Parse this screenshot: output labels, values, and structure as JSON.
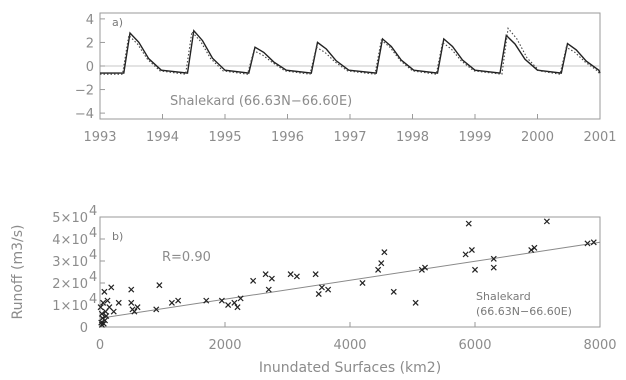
{
  "chart_data": [
    {
      "type": "line",
      "panel_label": "a)",
      "annotation": "Shalekard (66.63N−66.60E)",
      "xlim": [
        1993,
        2001
      ],
      "ylim": [
        -4.5,
        4.5
      ],
      "xticks": [
        "1993",
        "1994",
        "1995",
        "1996",
        "1997",
        "1998",
        "1999",
        "2000",
        "2001"
      ],
      "yticks": [
        "4",
        "2",
        "0",
        "−2",
        "−4"
      ],
      "series": [
        {
          "style": "solid",
          "peaks": [
            {
              "x": 1993.48,
              "y": 2.8
            },
            {
              "x": 1994.5,
              "y": 3.0
            },
            {
              "x": 1995.48,
              "y": 1.6
            },
            {
              "x": 1996.48,
              "y": 2.0
            },
            {
              "x": 1997.52,
              "y": 2.3
            },
            {
              "x": 1998.5,
              "y": 2.3
            },
            {
              "x": 1999.5,
              "y": 2.6
            },
            {
              "x": 2000.48,
              "y": 1.9
            }
          ],
          "baseline": -0.6
        },
        {
          "style": "dotted",
          "peaks": [
            {
              "x": 1993.46,
              "y": 2.6
            },
            {
              "x": 1994.47,
              "y": 2.9
            },
            {
              "x": 1995.46,
              "y": 1.3
            },
            {
              "x": 1996.46,
              "y": 1.6
            },
            {
              "x": 1997.5,
              "y": 2.2
            },
            {
              "x": 1998.48,
              "y": 2.0
            },
            {
              "x": 1999.53,
              "y": 3.2
            },
            {
              "x": 2000.46,
              "y": 1.6
            }
          ],
          "baseline": -0.7
        }
      ]
    },
    {
      "type": "scatter",
      "panel_label": "b)",
      "xlabel": "Inundated Surfaces (km2)",
      "ylabel": "Runoff (m3/s)",
      "annotation_r": "R=0.90",
      "annotation_site_line1": "Shalekard",
      "annotation_site_line2": "(66.63N−66.60E)",
      "xlim": [
        0,
        8000
      ],
      "ylim": [
        0,
        50000
      ],
      "xticks": [
        "0",
        "2000",
        "4000",
        "6000",
        "8000"
      ],
      "yticks": [
        {
          "mantissa": "0",
          "exp": ""
        },
        {
          "mantissa": "1×10",
          "exp": "4"
        },
        {
          "mantissa": "2×10",
          "exp": "4"
        },
        {
          "mantissa": "3×10",
          "exp": "4"
        },
        {
          "mantissa": "4×10",
          "exp": "4"
        },
        {
          "mantissa": "5×10",
          "exp": "4"
        }
      ],
      "fit_line": {
        "x": [
          0,
          8000
        ],
        "y": [
          4000,
          38500
        ]
      },
      "points": [
        {
          "x": 20,
          "y": 2000
        },
        {
          "x": 40,
          "y": 4000
        },
        {
          "x": 60,
          "y": 1500
        },
        {
          "x": 30,
          "y": 6000
        },
        {
          "x": 80,
          "y": 3000
        },
        {
          "x": 10,
          "y": 9000
        },
        {
          "x": 50,
          "y": 11000
        },
        {
          "x": 100,
          "y": 5000
        },
        {
          "x": 70,
          "y": 16000
        },
        {
          "x": 150,
          "y": 9000
        },
        {
          "x": 120,
          "y": 12000
        },
        {
          "x": 180,
          "y": 18000
        },
        {
          "x": 220,
          "y": 7000
        },
        {
          "x": 300,
          "y": 11000
        },
        {
          "x": 30,
          "y": 1000
        },
        {
          "x": 90,
          "y": 7000
        },
        {
          "x": 500,
          "y": 11000
        },
        {
          "x": 520,
          "y": 8000
        },
        {
          "x": 550,
          "y": 7000
        },
        {
          "x": 500,
          "y": 17000
        },
        {
          "x": 600,
          "y": 9000
        },
        {
          "x": 950,
          "y": 19000
        },
        {
          "x": 900,
          "y": 8000
        },
        {
          "x": 1150,
          "y": 11000
        },
        {
          "x": 1250,
          "y": 12000
        },
        {
          "x": 1700,
          "y": 12000
        },
        {
          "x": 1950,
          "y": 12000
        },
        {
          "x": 2050,
          "y": 10000
        },
        {
          "x": 2150,
          "y": 11000
        },
        {
          "x": 2200,
          "y": 9000
        },
        {
          "x": 2250,
          "y": 13000
        },
        {
          "x": 2450,
          "y": 21000
        },
        {
          "x": 2650,
          "y": 24000
        },
        {
          "x": 2700,
          "y": 17000
        },
        {
          "x": 2750,
          "y": 22000
        },
        {
          "x": 3050,
          "y": 24000
        },
        {
          "x": 3150,
          "y": 23000
        },
        {
          "x": 3450,
          "y": 24000
        },
        {
          "x": 3500,
          "y": 15000
        },
        {
          "x": 3550,
          "y": 18000
        },
        {
          "x": 3650,
          "y": 17000
        },
        {
          "x": 4200,
          "y": 20000
        },
        {
          "x": 4450,
          "y": 26000
        },
        {
          "x": 4500,
          "y": 29000
        },
        {
          "x": 4550,
          "y": 34000
        },
        {
          "x": 4700,
          "y": 16000
        },
        {
          "x": 5050,
          "y": 11000
        },
        {
          "x": 5150,
          "y": 26000
        },
        {
          "x": 5200,
          "y": 27000
        },
        {
          "x": 5850,
          "y": 33000
        },
        {
          "x": 5950,
          "y": 35000
        },
        {
          "x": 5900,
          "y": 47000
        },
        {
          "x": 6000,
          "y": 26000
        },
        {
          "x": 6300,
          "y": 31000
        },
        {
          "x": 6300,
          "y": 27000
        },
        {
          "x": 6900,
          "y": 35000
        },
        {
          "x": 6950,
          "y": 36000
        },
        {
          "x": 7150,
          "y": 48000
        },
        {
          "x": 7800,
          "y": 38000
        },
        {
          "x": 7900,
          "y": 38500
        }
      ]
    }
  ]
}
